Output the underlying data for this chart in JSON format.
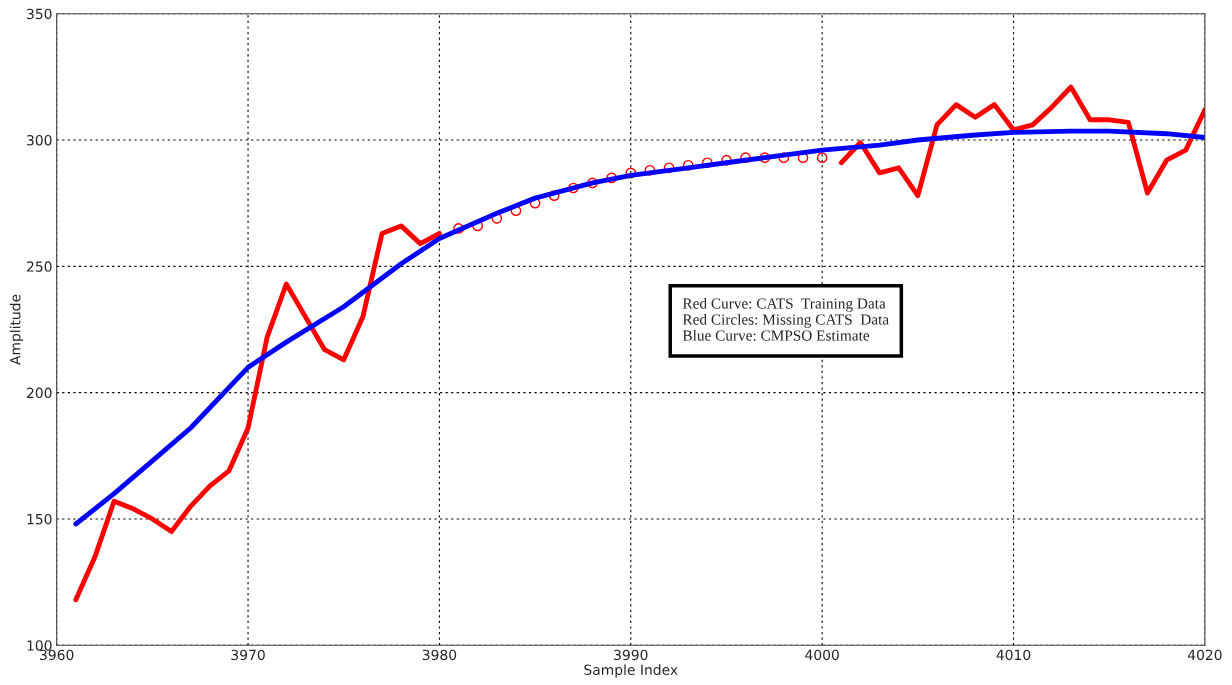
{
  "chart_data": {
    "type": "line",
    "xlabel": "Sample Index",
    "ylabel": "Amplitude",
    "series": [
      {
        "color": "#ff0000",
        "x": [
          3961,
          3962,
          3963,
          3964,
          3965,
          3966,
          3967,
          3968,
          3969,
          3970,
          3971,
          3972,
          3973,
          3974,
          3975,
          3976,
          3977,
          3978,
          3979,
          3980,
          3981,
          4001,
          4002,
          4003,
          4004,
          4005,
          4006,
          4007,
          4008,
          4009,
          4010,
          4011,
          4012,
          4013,
          4014,
          4015,
          4016,
          4017,
          4018,
          4019,
          4020
        ],
        "values": [
          118,
          135,
          157,
          154,
          150,
          145,
          155,
          163,
          169,
          186,
          222,
          243,
          230,
          217,
          213,
          230,
          263,
          266,
          259,
          263,
          null,
          291,
          299,
          287,
          289,
          278,
          306,
          314,
          309,
          314,
          304,
          306,
          313,
          321,
          308,
          308,
          307,
          279,
          292,
          296,
          312
        ]
      },
      {
        "type": "scatter",
        "marker": "circle",
        "color": "#ff0000",
        "x": [
          3981,
          3982,
          3983,
          3984,
          3985,
          3986,
          3987,
          3988,
          3989,
          3990,
          3991,
          3992,
          3993,
          3994,
          3995,
          3996,
          3997,
          3998,
          3999,
          4000
        ],
        "values": [
          265,
          266,
          269,
          272,
          275,
          278,
          281,
          283,
          285,
          287,
          288,
          289,
          290,
          291,
          292,
          293,
          293,
          293,
          293,
          293
        ]
      },
      {
        "color": "#0000ff",
        "x": [
          3961,
          3963,
          3965,
          3967,
          3970,
          3972,
          3975,
          3978,
          3980,
          3983,
          3985,
          3988,
          3990,
          3993,
          3995,
          3998,
          4000,
          4003,
          4005,
          4008,
          4010,
          4013,
          4015,
          4018,
          4020
        ],
        "values": [
          148,
          160,
          173,
          186,
          210,
          220,
          234,
          251,
          261,
          271,
          277,
          283,
          286,
          289,
          291,
          294,
          296,
          298,
          300,
          302,
          303,
          303.5,
          303.5,
          302.5,
          301
        ]
      }
    ],
    "annotations": [
      "Red Curve: CATS  Training Data",
      "Red Circles: Missing CATS  Data",
      "Blue Curve: CMPSO Estimate"
    ],
    "xlim": [
      3960,
      4020
    ],
    "xticks": [
      3960,
      3970,
      3980,
      3990,
      4000,
      4010,
      4020
    ],
    "ylim": [
      100,
      350
    ],
    "yticks": [
      100,
      150,
      200,
      250,
      300,
      350
    ],
    "grid": true,
    "line_style": "solid"
  }
}
